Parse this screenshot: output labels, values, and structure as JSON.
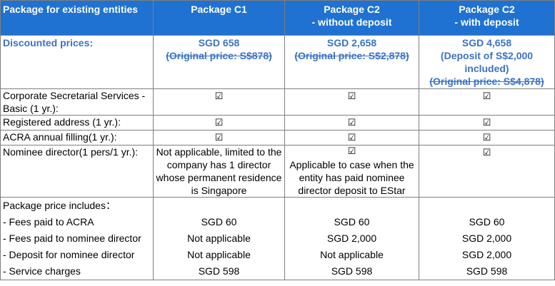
{
  "header": {
    "col0": "Package for existing entities",
    "col1": "Package C1",
    "col2_line1": "Package C2",
    "col2_line2": "- without deposit",
    "col3_line1": "Package C2",
    "col3_line2": "- with deposit"
  },
  "discounted": {
    "label": "Discounted prices:",
    "c1_price": "SGD 658",
    "c1_original": "(Original price: S$878)",
    "c2_price": "SGD 2,658",
    "c2_original": "(Original price: S$2,878)",
    "c3_price": "SGD 4,658",
    "c3_deposit1": "(Deposit of S$2,000",
    "c3_deposit2": "included)",
    "c3_original": "(Original price: S$4,878)"
  },
  "check_symbol": "☑",
  "services": [
    {
      "label": "Corporate Secretarial Services - Basic (1 yr.):"
    },
    {
      "label": "Registered address (1 yr.):"
    },
    {
      "label": "ACRA annual filling(1 yr.):"
    },
    {
      "label": "Nominee director(1 pers/1 yr.):",
      "c1_note": "Not applicable, limited to the company has 1 director whose permanent residence is Singapore",
      "c2_note": "Applicable to case when the entity has paid nominee director deposit to EStar"
    }
  ],
  "includes": {
    "heading": "Package price includes：",
    "rows": [
      {
        "label": "- Fees paid to ACRA",
        "c1": "SGD 60",
        "c2": "SGD 60",
        "c3": "SGD 60"
      },
      {
        "label": "- Fees paid to nominee director",
        "c1": "Not applicable",
        "c2": "SGD 2,000",
        "c3": "SGD 2,000"
      },
      {
        "label": "- Deposit for nominee director",
        "c1": "Not applicable",
        "c2": "Not applicable",
        "c3": "SGD 2,000"
      },
      {
        "label": "- Service charges",
        "c1": "SGD 598",
        "c2": "SGD 598",
        "c3": "SGD 598"
      }
    ]
  }
}
